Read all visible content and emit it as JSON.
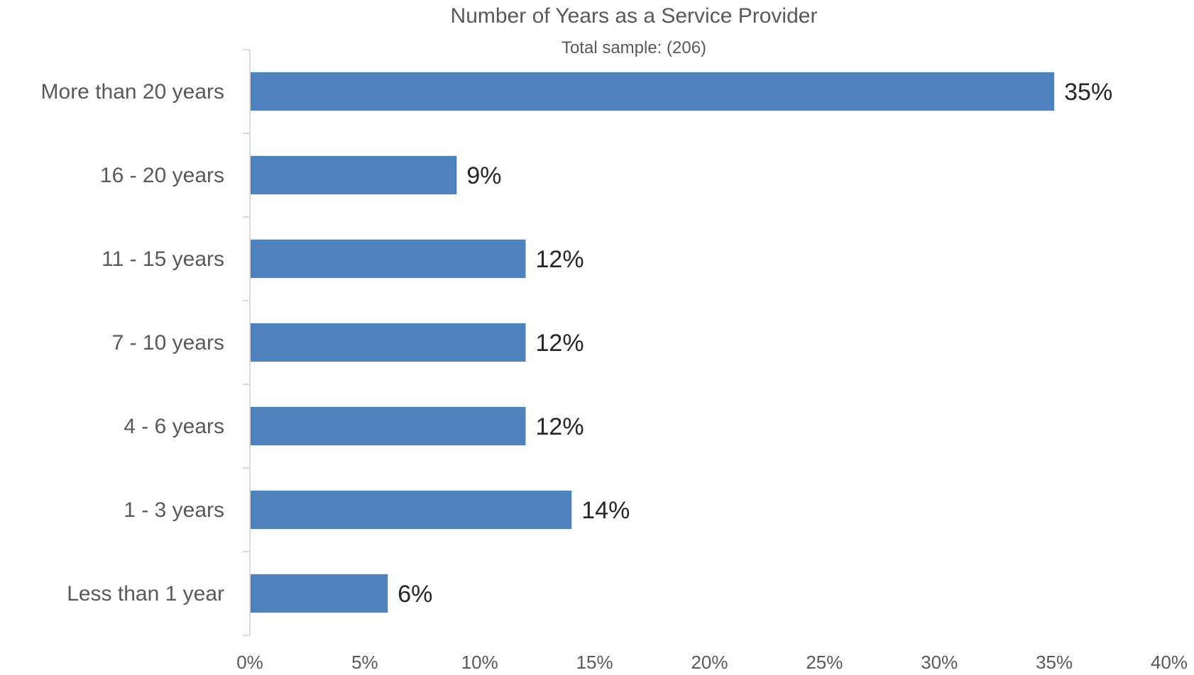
{
  "chart_data": {
    "type": "bar",
    "orientation": "horizontal",
    "title": "Number of Years as a Service Provider",
    "subtitle": "Total sample:  (206)",
    "categories": [
      "More than 20 years",
      "16 - 20 years",
      "11 - 15 years",
      "7 - 10 years",
      "4 - 6 years",
      "1 - 3 years",
      "Less than 1 year"
    ],
    "values": [
      35,
      9,
      12,
      12,
      12,
      14,
      6
    ],
    "data_labels": [
      "35%",
      "9%",
      "12%",
      "12%",
      "12%",
      "14%",
      "6%"
    ],
    "xlim": [
      0,
      40
    ],
    "x_ticks": [
      0,
      5,
      10,
      15,
      20,
      25,
      30,
      35,
      40
    ],
    "x_tick_labels": [
      "0%",
      "5%",
      "10%",
      "15%",
      "20%",
      "25%",
      "30%",
      "35%",
      "40%"
    ],
    "xlabel": "",
    "ylabel": "",
    "grid": false,
    "legend": "none",
    "bar_color": "#4f81bd"
  }
}
